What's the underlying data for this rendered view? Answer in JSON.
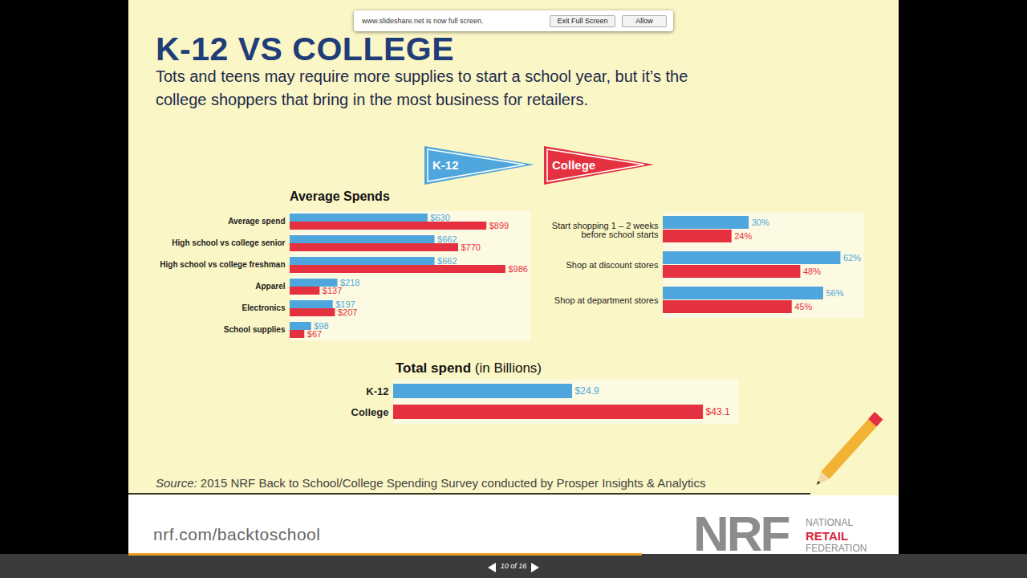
{
  "page": {
    "browser_notice": "www.slideshare.net is now full screen.",
    "exit_button": "Exit Full Screen",
    "allow_button": "Allow",
    "title": "K-12 VS COLLEGE",
    "subtitle": "Tots and teens may require more supplies to start a school year, but it’s the college shoppers that bring in the most business for retailers.",
    "source_label": "Source:",
    "source": "2015 NRF Back to School/College Spending Survey conducted by Prosper Insights & Analytics",
    "url": "nrf.com/backtoschool",
    "logo": {
      "mark": "NRF",
      "lines": [
        "NATIONAL",
        "RETAIL",
        "FEDERATION"
      ]
    },
    "slide_counter": "10 of 16"
  },
  "chart_data": [
    {
      "type": "bar",
      "title": "Average Spends",
      "orientation": "horizontal",
      "categories": [
        "Average spend",
        "High school vs college senior",
        "High school vs college freshman",
        "Apparel",
        "Electronics",
        "School supplies"
      ],
      "series": [
        {
          "name": "K-12",
          "color": "#4ea6dc",
          "values": [
            630,
            662,
            662,
            218,
            197,
            98
          ],
          "value_labels": [
            "$630",
            "$662",
            "$662",
            "$218",
            "$197",
            "$98"
          ]
        },
        {
          "name": "College",
          "color": "#e5303f",
          "values": [
            899,
            770,
            986,
            137,
            207,
            67
          ],
          "value_labels": [
            "$899",
            "$770",
            "$986",
            "$137",
            "$207",
            "$67"
          ]
        }
      ],
      "xlim": [
        0,
        1100
      ],
      "data_labels": true,
      "tick_labels": "y",
      "legend": "top"
    },
    {
      "type": "bar",
      "orientation": "horizontal",
      "categories": [
        "Start shopping 1 – 2 weeks before school starts",
        "Shop at discount stores",
        "Shop at department stores"
      ],
      "series": [
        {
          "name": "K-12",
          "color": "#4ea6dc",
          "values": [
            30,
            62,
            56
          ],
          "value_labels": [
            "30%",
            "62%",
            "56%"
          ]
        },
        {
          "name": "College",
          "color": "#e5303f",
          "values": [
            24,
            48,
            45
          ],
          "value_labels": [
            "24%",
            "48%",
            "45%"
          ]
        }
      ],
      "xlim": [
        0,
        70
      ],
      "data_labels": true,
      "tick_labels": "y"
    },
    {
      "type": "bar",
      "title": "Total spend (in Billions)",
      "orientation": "horizontal",
      "categories": [
        "K-12",
        "College"
      ],
      "values": [
        24.9,
        43.1
      ],
      "value_labels": [
        "$24.9",
        "$43.1"
      ],
      "colors": [
        "#4ea6dc",
        "#e5303f"
      ],
      "xlim": [
        0,
        48
      ],
      "data_labels": true,
      "tick_labels": "y"
    }
  ]
}
